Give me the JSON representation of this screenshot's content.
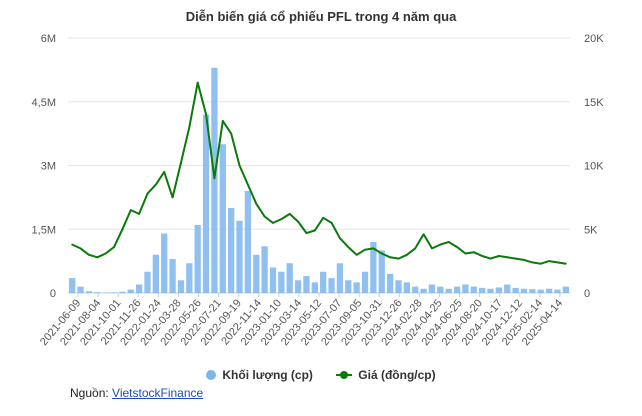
{
  "chart_data": {
    "type": "line",
    "title": "Diễn biến giá cổ phiếu PFL trong 4 năm qua",
    "x_ticks": [
      "2021-06-09",
      "2021-08-04",
      "2021-10-01",
      "2021-11-26",
      "2022-01-24",
      "2022-03-28",
      "2022-05-26",
      "2022-07-21",
      "2022-09-19",
      "2022-11-14",
      "2023-01-10",
      "2023-03-14",
      "2023-05-12",
      "2023-07-07",
      "2023-09-05",
      "2023-10-31",
      "2023-12-26",
      "2024-02-28",
      "2024-04-25",
      "2024-06-25",
      "2024-08-20",
      "2024-10-17",
      "2024-12-12",
      "2025-02-14",
      "2025-04-14"
    ],
    "y_left": {
      "ticks": [
        "0",
        "1,5M",
        "3M",
        "4,5M",
        "6M"
      ],
      "min": 0,
      "max": 6000000
    },
    "y_right": {
      "ticks": [
        "0",
        "5K",
        "10K",
        "15K",
        "20K"
      ],
      "min": 0,
      "max": 20000
    },
    "series": [
      {
        "name": "Khối lượng (cp)",
        "type": "bar",
        "axis": "left",
        "color": "#7cb5ec",
        "values": [
          [
            0,
            350000
          ],
          [
            1,
            150000
          ],
          [
            2,
            40000
          ],
          [
            3,
            20000
          ],
          [
            4,
            10000
          ],
          [
            5,
            15000
          ],
          [
            6,
            30000
          ],
          [
            7,
            80000
          ],
          [
            8,
            200000
          ],
          [
            9,
            500000
          ],
          [
            10,
            900000
          ],
          [
            11,
            1400000
          ],
          [
            12,
            800000
          ],
          [
            13,
            300000
          ],
          [
            14,
            700000
          ],
          [
            15,
            1600000
          ],
          [
            16,
            4200000
          ],
          [
            17,
            5300000
          ],
          [
            18,
            3500000
          ],
          [
            19,
            2000000
          ],
          [
            20,
            1700000
          ],
          [
            21,
            2400000
          ],
          [
            22,
            900000
          ],
          [
            23,
            1100000
          ],
          [
            24,
            600000
          ],
          [
            25,
            500000
          ],
          [
            26,
            700000
          ],
          [
            27,
            300000
          ],
          [
            28,
            400000
          ],
          [
            29,
            250000
          ],
          [
            30,
            500000
          ],
          [
            31,
            350000
          ],
          [
            32,
            700000
          ],
          [
            33,
            300000
          ],
          [
            34,
            250000
          ],
          [
            35,
            500000
          ],
          [
            36,
            1200000
          ],
          [
            37,
            1000000
          ],
          [
            38,
            450000
          ],
          [
            39,
            300000
          ],
          [
            40,
            250000
          ],
          [
            41,
            150000
          ],
          [
            42,
            100000
          ],
          [
            43,
            200000
          ],
          [
            44,
            150000
          ],
          [
            45,
            100000
          ],
          [
            46,
            150000
          ],
          [
            47,
            200000
          ],
          [
            48,
            150000
          ],
          [
            49,
            120000
          ],
          [
            50,
            100000
          ],
          [
            51,
            130000
          ],
          [
            52,
            200000
          ],
          [
            53,
            120000
          ],
          [
            54,
            100000
          ],
          [
            55,
            90000
          ],
          [
            56,
            80000
          ],
          [
            57,
            100000
          ],
          [
            58,
            80000
          ],
          [
            59,
            150000
          ]
        ]
      },
      {
        "name": "Giá (đồng/cp)",
        "type": "line",
        "axis": "right",
        "color": "#0a7a0a",
        "values": [
          [
            0,
            3800
          ],
          [
            1,
            3500
          ],
          [
            2,
            3000
          ],
          [
            3,
            2800
          ],
          [
            4,
            3100
          ],
          [
            5,
            3600
          ],
          [
            6,
            5000
          ],
          [
            7,
            6500
          ],
          [
            8,
            6200
          ],
          [
            9,
            7800
          ],
          [
            10,
            8500
          ],
          [
            11,
            9500
          ],
          [
            12,
            7500
          ],
          [
            13,
            10200
          ],
          [
            14,
            13000
          ],
          [
            15,
            16500
          ],
          [
            16,
            14000
          ],
          [
            17,
            9000
          ],
          [
            18,
            13500
          ],
          [
            19,
            12500
          ],
          [
            20,
            10000
          ],
          [
            21,
            8500
          ],
          [
            22,
            7000
          ],
          [
            23,
            6000
          ],
          [
            24,
            5500
          ],
          [
            25,
            5800
          ],
          [
            26,
            6200
          ],
          [
            27,
            5600
          ],
          [
            28,
            4700
          ],
          [
            29,
            4900
          ],
          [
            30,
            5900
          ],
          [
            31,
            5500
          ],
          [
            32,
            4300
          ],
          [
            33,
            3600
          ],
          [
            34,
            3000
          ],
          [
            35,
            3400
          ],
          [
            36,
            3500
          ],
          [
            37,
            3100
          ],
          [
            38,
            2800
          ],
          [
            39,
            2700
          ],
          [
            40,
            3000
          ],
          [
            41,
            3500
          ],
          [
            42,
            4600
          ],
          [
            43,
            3500
          ],
          [
            44,
            3800
          ],
          [
            45,
            4000
          ],
          [
            46,
            3600
          ],
          [
            47,
            3100
          ],
          [
            48,
            3200
          ],
          [
            49,
            2900
          ],
          [
            50,
            2700
          ],
          [
            51,
            2900
          ],
          [
            52,
            2800
          ],
          [
            53,
            2700
          ],
          [
            54,
            2600
          ],
          [
            55,
            2400
          ],
          [
            56,
            2300
          ],
          [
            57,
            2500
          ],
          [
            58,
            2400
          ],
          [
            59,
            2300
          ]
        ]
      }
    ],
    "legend": "bottom",
    "grid": true
  },
  "labels": {
    "legend_volume": "Khối lượng (cp)",
    "legend_price": "Giá (đồng/cp)",
    "source_label": "Nguồn: ",
    "source_link": "VietstockFinance"
  }
}
